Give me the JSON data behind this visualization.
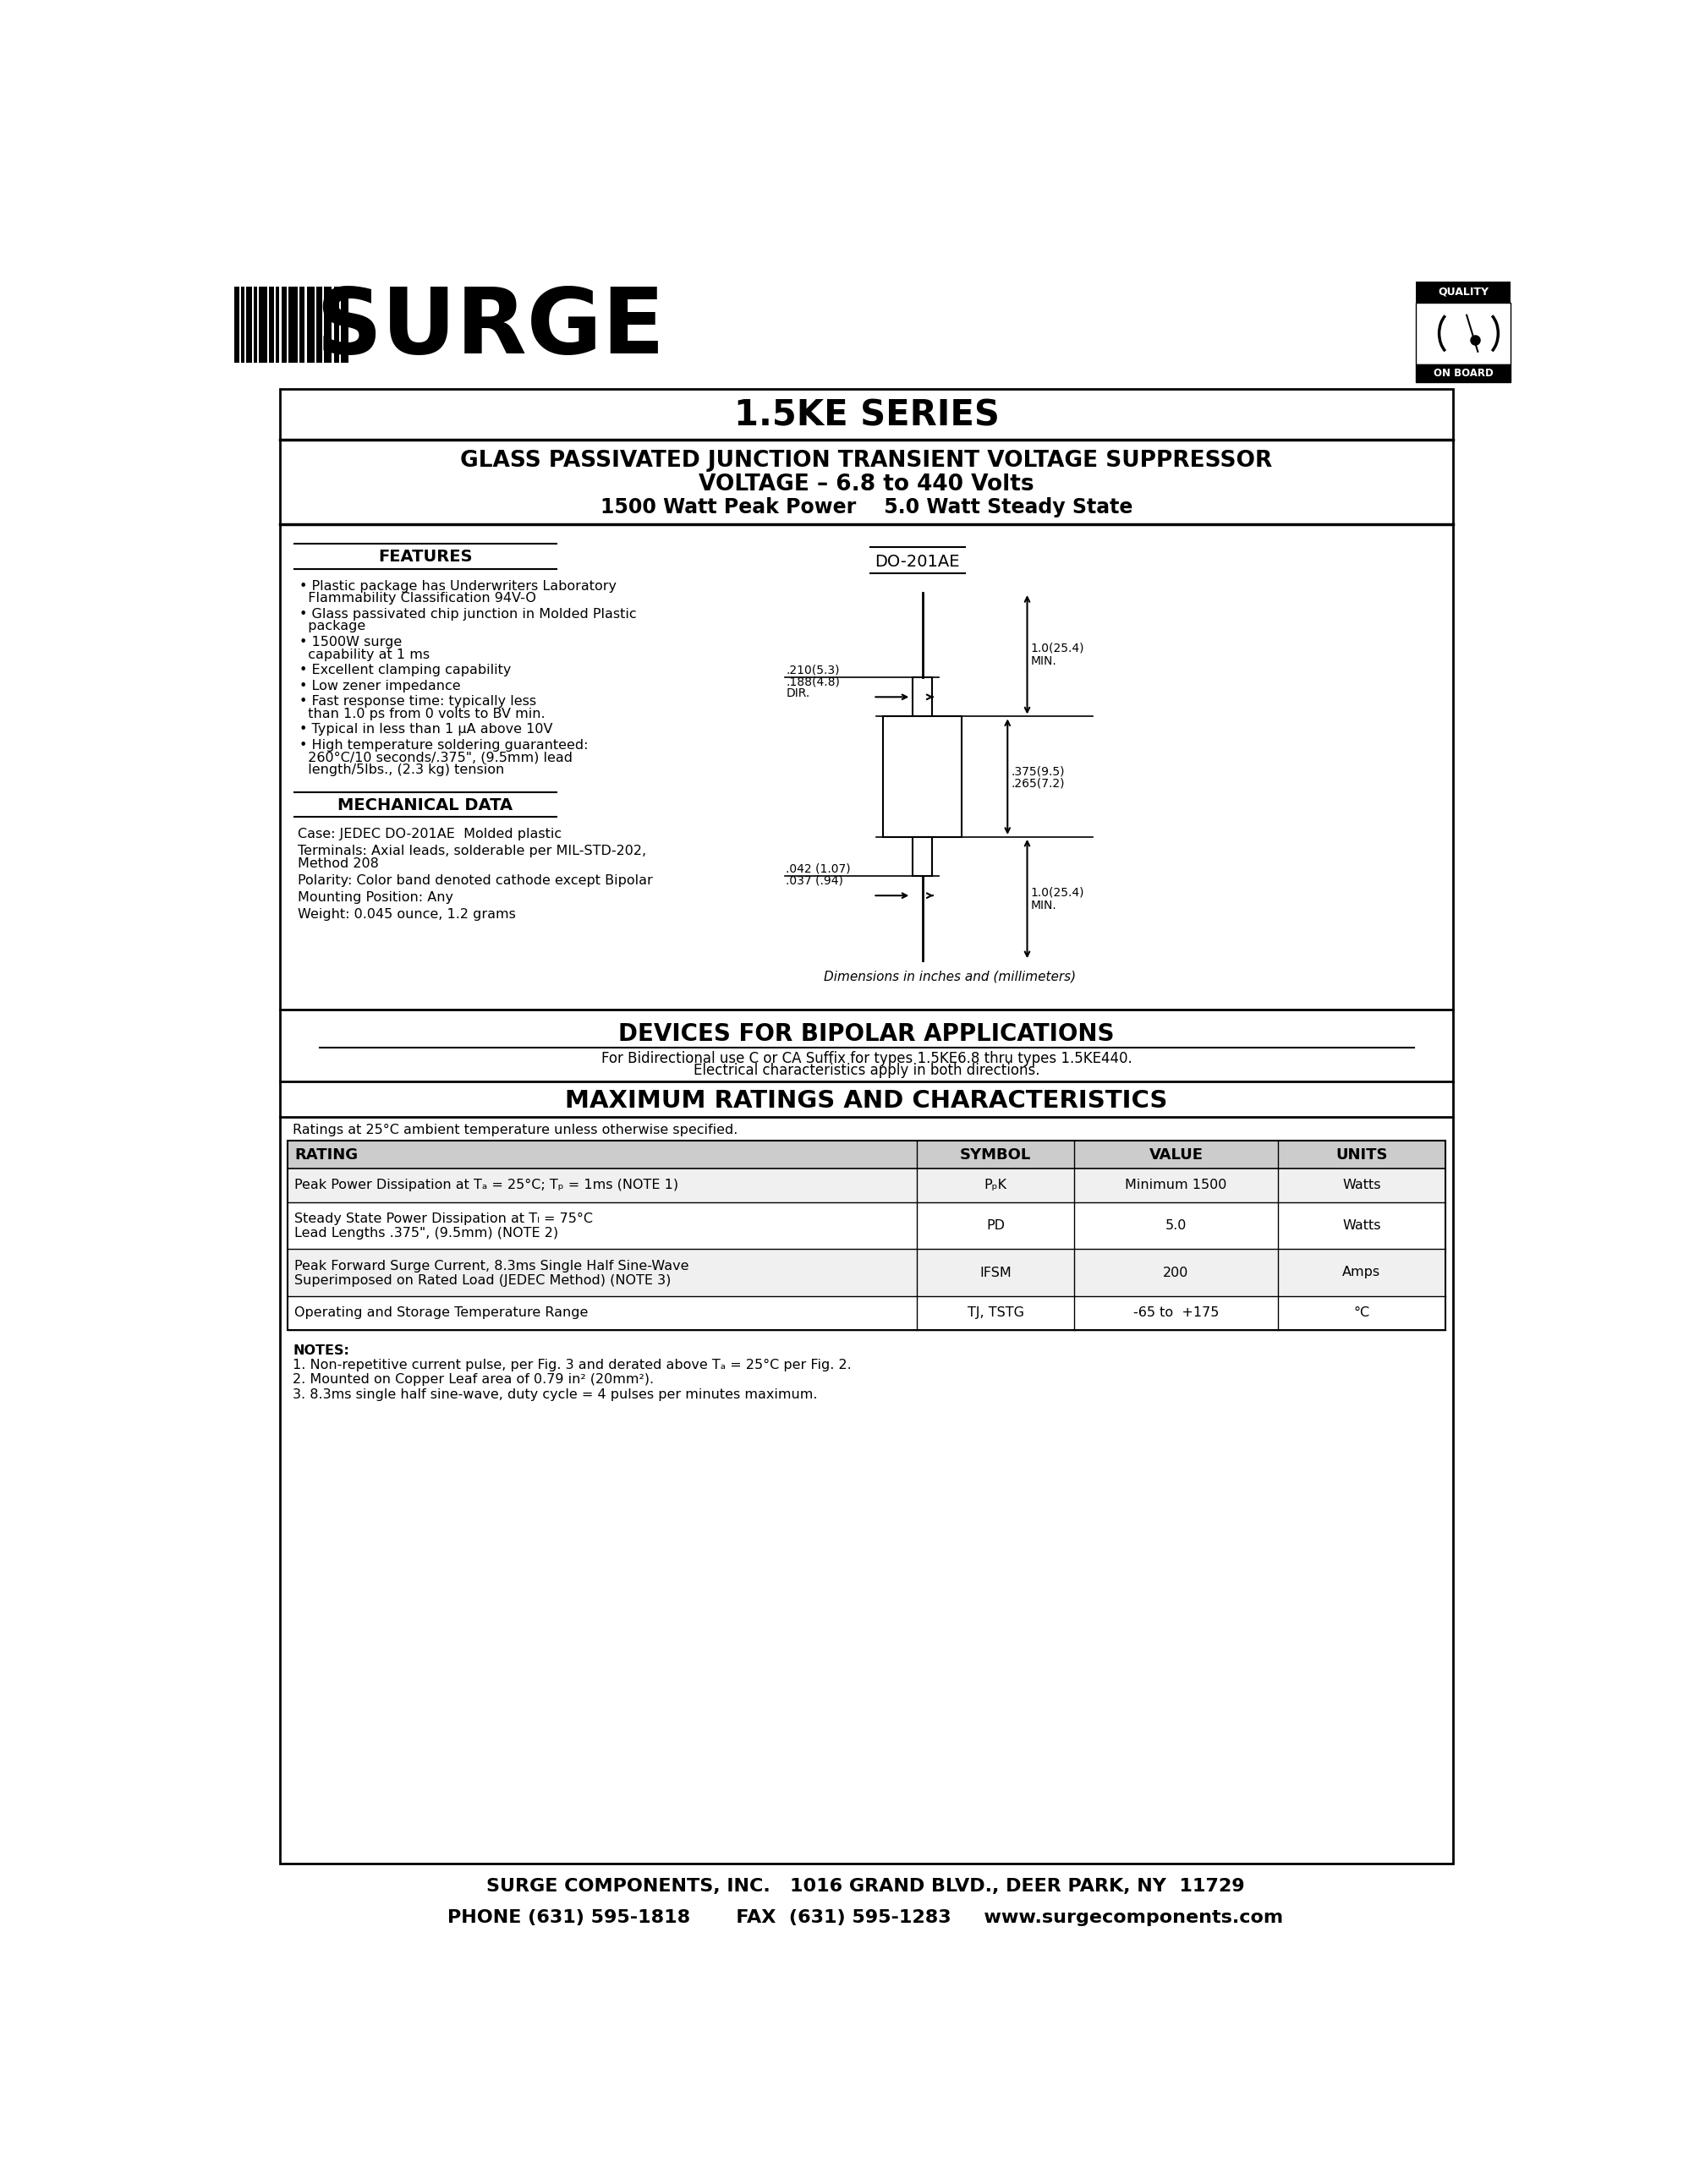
{
  "bg_color": "#ffffff",
  "title_series": "1.5KE SERIES",
  "subtitle_line1": "GLASS PASSIVATED JUNCTION TRANSIENT VOLTAGE SUPPRESSOR",
  "subtitle_line2": "VOLTAGE – 6.8 to 440 Volts",
  "subtitle_line3": "1500 Watt Peak Power    5.0 Watt Steady State",
  "features_title": "FEATURES",
  "features": [
    "Plastic package has Underwriters Laboratory\n  Flammability Classification 94V-O",
    "Glass passivated chip junction in Molded Plastic\n  package",
    "1500W surge\n  capability at 1 ms",
    "Excellent clamping capability",
    "Low zener impedance",
    "Fast response time: typically less\n  than 1.0 ps from 0 volts to BV min.",
    "Typical in less than 1 μA above 10V",
    "High temperature soldering guaranteed:\n  260°C/10 seconds/.375\", (9.5mm) lead\n  length/5lbs., (2.3 kg) tension"
  ],
  "mech_title": "MECHANICAL DATA",
  "mech_data": [
    "Case: JEDEC DO-201AE  Molded plastic",
    "Terminals: Axial leads, solderable per MIL-STD-202,\nMethod 208",
    "Polarity: Color band denoted cathode except Bipolar",
    "Mounting Position: Any",
    "Weight: 0.045 ounce, 1.2 grams"
  ],
  "package_label": "DO-201AE",
  "dim_note": "Dimensions in inches and (millimeters)",
  "bipolar_title": "DEVICES FOR BIPOLAR APPLICATIONS",
  "bipolar_text1": "For Bidirectional use C or CA Suffix for types 1.5KE6.8 thru types 1.5KE440.",
  "bipolar_text2": "Electrical characteristics apply in both directions.",
  "maxrating_title": "MAXIMUM RATINGS AND CHARACTERISTICS",
  "maxrating_note": "Ratings at 25°C ambient temperature unless otherwise specified.",
  "table_headers": [
    "RATING",
    "SYMBOL",
    "VALUE",
    "UNITS"
  ],
  "table_rows": [
    [
      "Peak Power Dissipation at Tₐ = 25°C; Tₚ = 1ms (NOTE 1)",
      "PₚK",
      "Minimum 1500",
      "Watts"
    ],
    [
      "Steady State Power Dissipation at Tₗ = 75°C\nLead Lengths .375\", (9.5mm) (NOTE 2)",
      "PD",
      "5.0",
      "Watts"
    ],
    [
      "Peak Forward Surge Current, 8.3ms Single Half Sine-Wave\nSuperimposed on Rated Load (JEDEC Method) (NOTE 3)",
      "IFSM",
      "200",
      "Amps"
    ],
    [
      "Operating and Storage Temperature Range",
      "TJ, TSTG",
      "-65 to  +175",
      "°C"
    ]
  ],
  "notes_title": "NOTES:",
  "notes": [
    "1. Non-repetitive current pulse, per Fig. 3 and derated above Tₐ = 25°C per Fig. 2.",
    "2. Mounted on Copper Leaf area of 0.79 in² (20mm²).",
    "3. 8.3ms single half sine-wave, duty cycle = 4 pulses per minutes maximum."
  ],
  "footer_line1": "SURGE COMPONENTS, INC.   1016 GRAND BLVD., DEER PARK, NY  11729",
  "footer_line2": "PHONE (631) 595-1818       FAX  (631) 595-1283     www.surgecomponents.com"
}
